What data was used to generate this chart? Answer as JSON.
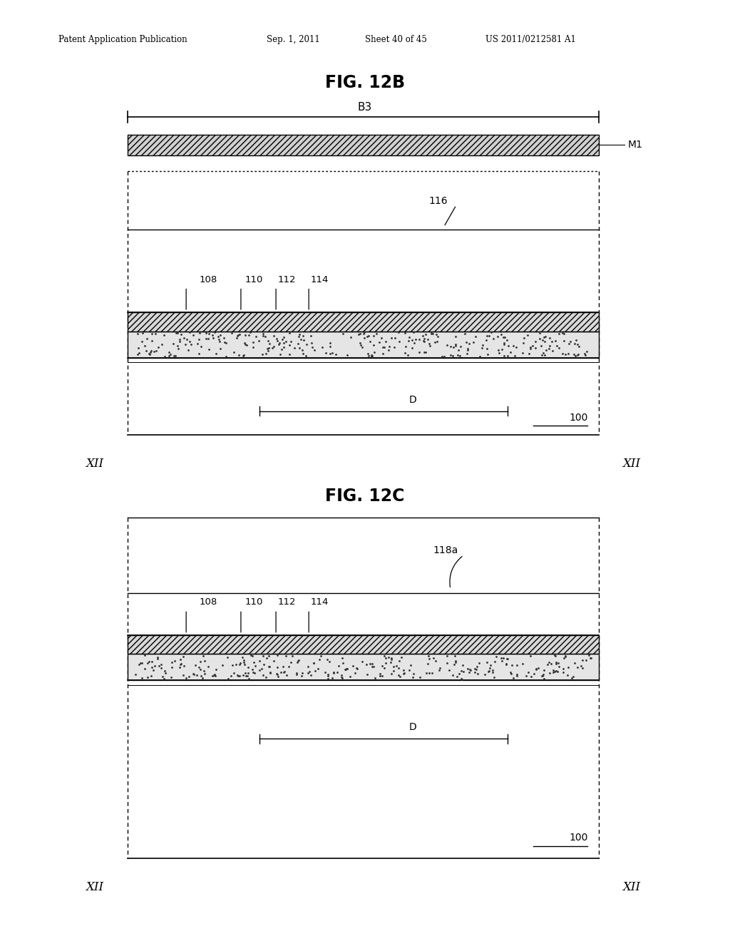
{
  "bg_color": "#ffffff",
  "header_text": "Patent Application Publication",
  "header_date": "Sep. 1, 2011",
  "header_sheet": "Sheet 40 of 45",
  "header_patent": "US 2011/0212581 A1",
  "fig12b_title": "FIG. 12B",
  "fig12c_title": "FIG. 12C",
  "label_B3": "B3",
  "label_M1": "M1",
  "label_116": "116",
  "label_118a": "118a",
  "label_108": "108",
  "label_110": "110",
  "label_112": "112",
  "label_114": "114",
  "label_D": "D",
  "label_100": "100",
  "label_XII": "XII",
  "line_color": "#000000",
  "dl": 0.175,
  "dr": 0.82
}
